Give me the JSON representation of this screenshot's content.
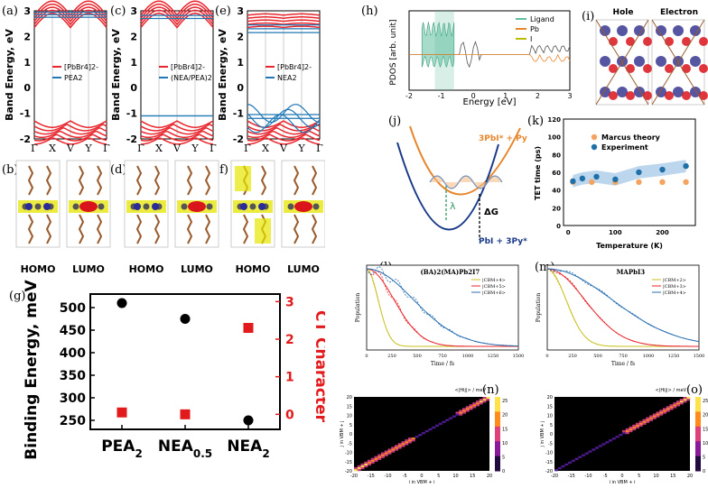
{
  "panel_labels": {
    "a": "(a)",
    "b": "(b)",
    "c": "(c)",
    "d": "(d)",
    "e": "(e)",
    "f": "(f)",
    "g": "(g)",
    "h": "(h)",
    "i": "(i)",
    "j": "(j)",
    "k": "(k)",
    "l": "(l)",
    "m": "(m)",
    "n": "(n)",
    "o": "(o)"
  },
  "band": {
    "ylabel": "Band Energy, eV",
    "yticks": [
      "3",
      "2",
      "1",
      "0",
      "-1",
      "-2"
    ],
    "kpoints": [
      "Γ",
      "X",
      "V",
      "Y",
      "Γ"
    ],
    "panels": [
      {
        "legend": [
          "[PbBr4]2-",
          "PEA2"
        ]
      },
      {
        "legend": [
          "[PbBr4]2-",
          "(NEA/PEA)2"
        ]
      },
      {
        "legend": [
          "[PbBr4]2-",
          "NEA2"
        ]
      }
    ]
  },
  "orbitals": {
    "homo": "HOMO",
    "lumo": "LUMO"
  },
  "chart_data": [
    {
      "panel": "(g)",
      "type": "scatter",
      "categories": [
        "PEA2",
        "NEA0.5",
        "NEA2"
      ],
      "ylabel": "Binding Energy, meV",
      "y2label": "CT Character",
      "ylim": [
        230,
        530
      ],
      "y2lim": [
        -0.4,
        3.2
      ],
      "yticks": [
        250,
        300,
        350,
        400,
        450,
        500
      ],
      "y2ticks": [
        0,
        1,
        2,
        3
      ],
      "series": [
        {
          "axis": "left",
          "color": "#000000",
          "marker": "circle",
          "values": [
            510,
            475,
            250
          ]
        },
        {
          "axis": "right",
          "color": "#e31a1c",
          "marker": "square",
          "values": [
            0.05,
            0.0,
            2.3
          ]
        }
      ]
    },
    {
      "panel": "(k)",
      "type": "scatter",
      "xlabel": "Temperature (K)",
      "ylabel": "TET time (ps)",
      "xlim": [
        -10,
        270
      ],
      "ylim": [
        0,
        120
      ],
      "xticks": [
        0,
        100,
        200
      ],
      "yticks": [
        0,
        20,
        40,
        60,
        80,
        100,
        120
      ],
      "series": [
        {
          "name": "Marcus theory",
          "color": "#f4a460",
          "x": [
            10,
            50,
            100,
            150,
            200,
            250
          ],
          "y": [
            49,
            49,
            49,
            49,
            49,
            49
          ]
        },
        {
          "name": "Experiment",
          "color": "#1f6fa8",
          "x": [
            10,
            30,
            60,
            100,
            150,
            200,
            250
          ],
          "y": [
            50,
            53,
            55,
            52,
            60,
            63,
            67
          ]
        }
      ]
    },
    {
      "panel": "(l)",
      "type": "line",
      "title": "(BA)2(MA)Pb2I7",
      "xlabel": "Time / fs",
      "ylabel": "Population",
      "xlim": [
        0,
        1500
      ],
      "xticks": [
        0,
        250,
        500,
        750,
        1000,
        1250,
        1500
      ],
      "series": [
        {
          "name": "|CBM+4>",
          "color": "#c8c020"
        },
        {
          "name": "|CBM+5>",
          "color": "#e8262d"
        },
        {
          "name": "|CBM+6>",
          "color": "#2a6fb0"
        }
      ]
    },
    {
      "panel": "(m)",
      "type": "line",
      "title": "MAPbI3",
      "xlabel": "Time / fs",
      "ylabel": "Population",
      "xlim": [
        0,
        1500
      ],
      "xticks": [
        0,
        250,
        500,
        750,
        1000,
        1250,
        1500
      ],
      "series": [
        {
          "name": "|CBM+2>",
          "color": "#c8c020"
        },
        {
          "name": "|CBM+3>",
          "color": "#e8262d"
        },
        {
          "name": "|CBM+4>",
          "color": "#2a6fb0"
        }
      ]
    },
    {
      "panel": "(h)",
      "type": "area",
      "xlabel": "Energy [eV]",
      "ylabel": "PDOS [arb. unit]",
      "xlim": [
        -2,
        3
      ],
      "xticks": [
        -2,
        -1,
        0,
        1,
        2,
        3
      ],
      "series": [
        {
          "name": "Ligand"
        },
        {
          "name": "Pb"
        },
        {
          "name": "I"
        }
      ]
    },
    {
      "panel": "(n)",
      "type": "heatmap",
      "title": "<|Hij|> / meV",
      "xlabel": "i in VBM + i",
      "ylabel": "j in VBM + j",
      "ticks": [
        -20,
        -15,
        -10,
        -5,
        0,
        5,
        10,
        15,
        20
      ],
      "colorbar": [
        0,
        5,
        10,
        15,
        20,
        25
      ]
    },
    {
      "panel": "(o)",
      "type": "heatmap",
      "title": "<|Hij|> / meV",
      "xlabel": "i in VBM + i",
      "ylabel": "j in VBM + j",
      "ticks": [
        -20,
        -15,
        -10,
        -5,
        0,
        5,
        10,
        15,
        20
      ],
      "colorbar": [
        0,
        5,
        10,
        15,
        20,
        25
      ]
    }
  ],
  "panel_i": {
    "hole": "Hole",
    "electron": "Electron"
  },
  "panel_j": {
    "upper": "3PbI* + Py",
    "lower": "PbI + 3Py*",
    "lambda": "λ",
    "dg": "ΔG"
  }
}
